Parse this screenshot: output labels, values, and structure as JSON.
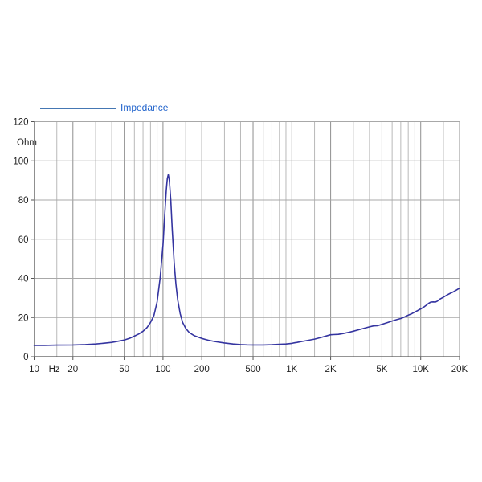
{
  "legend": {
    "label": "Impedance"
  },
  "colors": {
    "background": "#ffffff",
    "curve": "#3434a0",
    "legend_line": "#4577b3",
    "legend_text": "#2264cc",
    "grid_minor": "#b9b9b9",
    "grid_major": "#8f8f8f",
    "grid_horizontal": "#a8a8a8",
    "axis": "#555555",
    "label_text": "#222222"
  },
  "chart_data": {
    "type": "line",
    "title": "",
    "xlabel": "Hz",
    "ylabel": "Ohm",
    "x_scale": "log",
    "x_range": [
      10,
      20000
    ],
    "y_range": [
      0,
      120
    ],
    "grid": true,
    "legend_position": "top-left",
    "x_axis": {
      "unit_label": "Hz",
      "tick_values": [
        10,
        20,
        50,
        100,
        200,
        500,
        1000,
        2000,
        5000,
        10000,
        20000
      ],
      "tick_labels": [
        "10",
        "20",
        "50",
        "100",
        "200",
        "500",
        "1K",
        "2K",
        "5K",
        "10K",
        "20K"
      ],
      "minor_multipliers": [
        1,
        1.5,
        2,
        3,
        4,
        5,
        6,
        7,
        8,
        9
      ]
    },
    "y_axis": {
      "label": "Ohm",
      "tick_values": [
        0,
        20,
        40,
        60,
        80,
        100,
        120
      ],
      "tick_labels": [
        "0",
        "20",
        "40",
        "60",
        "80",
        "100",
        "120"
      ]
    },
    "series": [
      {
        "name": "Impedance",
        "unit": "Ohm",
        "points": [
          [
            10,
            5.8
          ],
          [
            12,
            5.8
          ],
          [
            15,
            5.9
          ],
          [
            20,
            6.0
          ],
          [
            25,
            6.2
          ],
          [
            30,
            6.5
          ],
          [
            35,
            6.9
          ],
          [
            40,
            7.3
          ],
          [
            45,
            7.9
          ],
          [
            50,
            8.5
          ],
          [
            55,
            9.4
          ],
          [
            60,
            10.5
          ],
          [
            65,
            11.6
          ],
          [
            70,
            13.0
          ],
          [
            75,
            14.8
          ],
          [
            80,
            17.5
          ],
          [
            85,
            21.0
          ],
          [
            90,
            28.0
          ],
          [
            95,
            40.0
          ],
          [
            100,
            57.0
          ],
          [
            103,
            72.0
          ],
          [
            106,
            85.0
          ],
          [
            108,
            91.0
          ],
          [
            110,
            93.0
          ],
          [
            112,
            90.0
          ],
          [
            115,
            80.0
          ],
          [
            118,
            65.0
          ],
          [
            122,
            48.0
          ],
          [
            126,
            37.0
          ],
          [
            130,
            29.0
          ],
          [
            136,
            22.0
          ],
          [
            142,
            17.5
          ],
          [
            150,
            14.5
          ],
          [
            160,
            12.3
          ],
          [
            175,
            10.7
          ],
          [
            200,
            9.3
          ],
          [
            225,
            8.4
          ],
          [
            250,
            7.8
          ],
          [
            300,
            7.0
          ],
          [
            350,
            6.5
          ],
          [
            400,
            6.2
          ],
          [
            450,
            6.05
          ],
          [
            500,
            6.0
          ],
          [
            600,
            6.0
          ],
          [
            700,
            6.1
          ],
          [
            800,
            6.3
          ],
          [
            900,
            6.5
          ],
          [
            1000,
            6.8
          ],
          [
            1050,
            7.1
          ],
          [
            1100,
            7.3
          ],
          [
            1200,
            7.8
          ],
          [
            1300,
            8.2
          ],
          [
            1500,
            9.0
          ],
          [
            1700,
            9.9
          ],
          [
            1900,
            10.8
          ],
          [
            2000,
            11.2
          ],
          [
            2100,
            11.3
          ],
          [
            2300,
            11.4
          ],
          [
            2500,
            11.8
          ],
          [
            2800,
            12.5
          ],
          [
            3000,
            13.0
          ],
          [
            3500,
            14.2
          ],
          [
            4000,
            15.2
          ],
          [
            4300,
            15.7
          ],
          [
            4600,
            15.8
          ],
          [
            5000,
            16.5
          ],
          [
            5500,
            17.4
          ],
          [
            6000,
            18.2
          ],
          [
            6500,
            18.9
          ],
          [
            7000,
            19.5
          ],
          [
            7500,
            20.3
          ],
          [
            8000,
            21.2
          ],
          [
            8500,
            21.9
          ],
          [
            9000,
            22.8
          ],
          [
            9500,
            23.6
          ],
          [
            10000,
            24.4
          ],
          [
            10500,
            25.2
          ],
          [
            11000,
            26.2
          ],
          [
            11500,
            27.2
          ],
          [
            12000,
            27.9
          ],
          [
            12500,
            28.0
          ],
          [
            13000,
            27.9
          ],
          [
            13500,
            28.4
          ],
          [
            14000,
            29.3
          ],
          [
            15000,
            30.4
          ],
          [
            16000,
            31.5
          ],
          [
            17000,
            32.4
          ],
          [
            18000,
            33.2
          ],
          [
            19000,
            34.1
          ],
          [
            20000,
            35.0
          ]
        ]
      }
    ]
  }
}
